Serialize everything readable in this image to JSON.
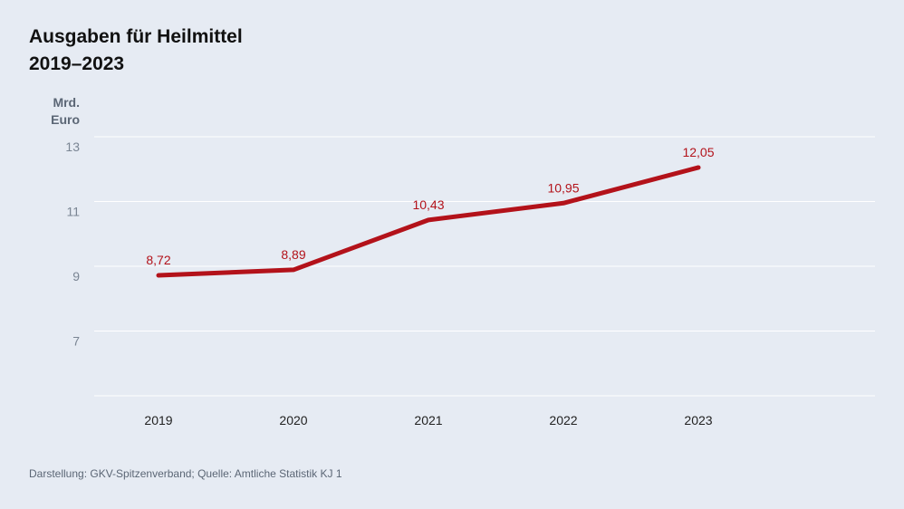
{
  "title": {
    "line1": "Ausgaben für Heilmittel",
    "line2": "2019–2023"
  },
  "source": "Darstellung: GKV-Spitzenverband; Quelle: Amtliche Statistik KJ 1",
  "colors": {
    "background": "#e6ebf3",
    "line": "#b3121a",
    "grid": "#ffffff",
    "tick_text": "#7a8593",
    "axis_title": "#5b6675"
  },
  "chart_data": {
    "type": "line",
    "ylabel": [
      "Mrd.",
      "Euro"
    ],
    "categories": [
      "2019",
      "2020",
      "2021",
      "2022",
      "2023"
    ],
    "series": [
      {
        "values": [
          8.72,
          8.89,
          10.43,
          10.95,
          12.05
        ],
        "labels": [
          "8,72",
          "8,89",
          "10,43",
          "10,95",
          "12,05"
        ]
      }
    ],
    "yticks": [
      13,
      11,
      9,
      7
    ],
    "ylim": [
      5,
      13
    ],
    "grid": true,
    "legend": "none"
  }
}
